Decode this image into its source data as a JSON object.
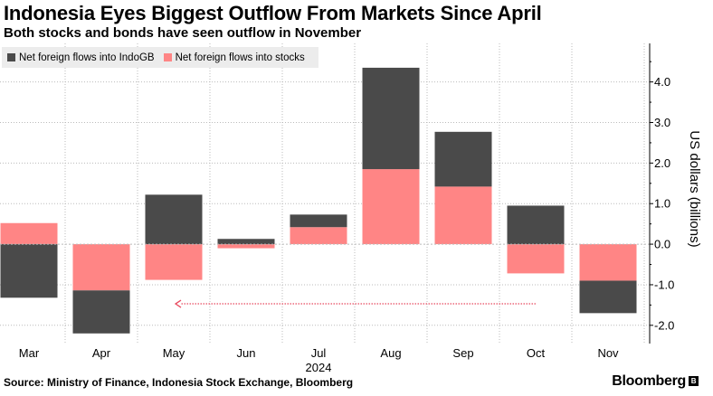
{
  "header": {
    "title": "Indonesia Eyes Biggest Outflow From Markets Since April",
    "subtitle": "Both stocks and bonds have seen outflow in November"
  },
  "footer": {
    "source": "Source: Ministry of Finance, Indonesia Stock Exchange, Bloomberg",
    "brand": "Bloomberg"
  },
  "colors": {
    "bonds": "#4a4a4a",
    "stocks": "#ff8585",
    "arrow": "#e84a5f",
    "grid": "#bbbbbb"
  },
  "chart_data": {
    "type": "bar",
    "stacked": true,
    "categories": [
      "Mar",
      "Apr",
      "May",
      "Jun",
      "Jul",
      "Aug",
      "Sep",
      "Oct",
      "Nov"
    ],
    "year_label": "2024",
    "series": [
      {
        "name": "Net foreign flows into stocks",
        "values": [
          0.52,
          -1.14,
          -0.88,
          -0.1,
          0.42,
          1.85,
          1.42,
          -0.72,
          -0.9
        ]
      },
      {
        "name": "Net foreign flows into IndoGB",
        "values": [
          -1.32,
          -1.06,
          1.22,
          0.13,
          0.31,
          2.5,
          1.35,
          0.95,
          -0.8
        ]
      }
    ],
    "ylabel": "US dollars (billions)",
    "ylim": [
      -2.45,
      4.95
    ],
    "yticks": [
      4.0,
      3.0,
      2.0,
      1.0,
      0.0,
      -1.0,
      -2.0
    ],
    "ytick_labels": [
      "4.0",
      "3.0",
      "2.0",
      "1.0",
      "0.0",
      "-1.0",
      "-2.0"
    ],
    "annotation": {
      "type": "arrow",
      "from_category": "Oct",
      "to_category": "May",
      "y": -1.47
    }
  }
}
